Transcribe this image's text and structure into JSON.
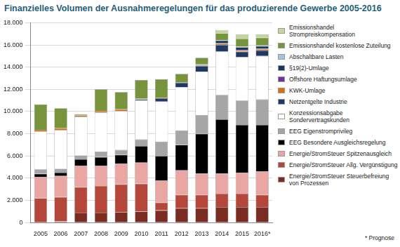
{
  "chart_data": {
    "type": "bar",
    "title": "Finanzielles Volumen der Ausnahmeregelungen für das produzierende Gewerbe 2005-2016",
    "annotations": [
      "* Prognose"
    ],
    "categories": [
      "2005",
      "2006",
      "2007",
      "2008",
      "2009",
      "2010",
      "2011",
      "2012",
      "2013",
      "2014",
      "2015",
      "2016*"
    ],
    "stacked": true,
    "grid": true,
    "legend": "right",
    "ylim": [
      0,
      18000
    ],
    "yticks": [
      0,
      {
        "value": 2000,
        "label": "2.000"
      },
      {
        "value": 4000,
        "label": "4.000"
      },
      {
        "value": 6000,
        "label": "6.000"
      },
      {
        "value": 8000,
        "label": "8.000"
      },
      {
        "value": 10000,
        "label": "10.000"
      },
      {
        "value": 12000,
        "label": "12.000"
      },
      {
        "value": 14000,
        "label": "14.000"
      },
      {
        "value": 16000,
        "label": "16.000"
      },
      {
        "value": 18000,
        "label": "18.000"
      }
    ],
    "series": [
      {
        "name": "Energie/StromSteuer Steuerbefreiung von Prozessen",
        "color": "#7b2c22",
        "values": [
          0,
          100,
          900,
          900,
          950,
          1000,
          1100,
          1300,
          1300,
          1400,
          1400,
          1400
        ]
      },
      {
        "name": "Energie/StromSteuer Allg. Vergünstigung",
        "color": "#b5473a",
        "values": [
          2200,
          2200,
          2300,
          2400,
          2500,
          2500,
          700,
          1200,
          1200,
          1200,
          1200,
          1100
        ]
      },
      {
        "name": "Energie/StromSteuer Spitzenausgleich",
        "color": "#e9a6a2",
        "values": [
          1900,
          1900,
          1900,
          1800,
          1850,
          1900,
          2000,
          2200,
          1900,
          1800,
          1900,
          2100
        ]
      },
      {
        "name": "EEG Besondere Ausgleichsregelung",
        "color": "#000000",
        "values": [
          300,
          300,
          600,
          800,
          800,
          1500,
          2200,
          2300,
          3600,
          4900,
          4300,
          4200
        ]
      },
      {
        "name": "EEG Eigenstromprivileg",
        "color": "#a6a6a6",
        "values": [
          400,
          350,
          350,
          500,
          450,
          600,
          1300,
          1300,
          1700,
          2200,
          2200,
          2300
        ]
      },
      {
        "name": "Konzessionsabgabe Sondervertragskunden",
        "color": "#ffffff",
        "values": [
          3400,
          3500,
          3500,
          3500,
          3500,
          3500,
          3600,
          3900,
          3900,
          3900,
          3900,
          3900
        ]
      },
      {
        "name": "Netzentgelte Industrie",
        "color": "#1f3864",
        "values": [
          0,
          0,
          0,
          0,
          0,
          100,
          300,
          400,
          500,
          600,
          500,
          500
        ]
      },
      {
        "name": "KWK-Umlage",
        "color": "#e36c0a",
        "values": [
          150,
          150,
          100,
          150,
          150,
          50,
          50,
          0,
          50,
          100,
          100,
          100
        ]
      },
      {
        "name": "Offshore Haftungsumlage",
        "color": "#7030a0",
        "values": [
          0,
          0,
          0,
          0,
          0,
          0,
          0,
          0,
          50,
          50,
          50,
          50
        ]
      },
      {
        "name": "§19(2)-Umlage",
        "color": "#17375e",
        "values": [
          0,
          0,
          0,
          0,
          0,
          0,
          0,
          0,
          50,
          250,
          250,
          250
        ]
      },
      {
        "name": "Abschaltbare Lasten",
        "color": "#9dc3e6",
        "values": [
          0,
          0,
          0,
          0,
          0,
          0,
          0,
          0,
          0,
          50,
          50,
          50
        ]
      },
      {
        "name": "Emissionshandel kostenlose Zuteilung",
        "color": "#77933c",
        "values": [
          2300,
          1800,
          100,
          1950,
          1550,
          1700,
          1650,
          800,
          600,
          600,
          700,
          700
        ]
      },
      {
        "name": "Emissionshandel Strompreiskompensation",
        "color": "#c4d79b",
        "values": [
          0,
          0,
          0,
          0,
          0,
          0,
          0,
          0,
          0,
          300,
          400,
          300
        ]
      }
    ]
  }
}
